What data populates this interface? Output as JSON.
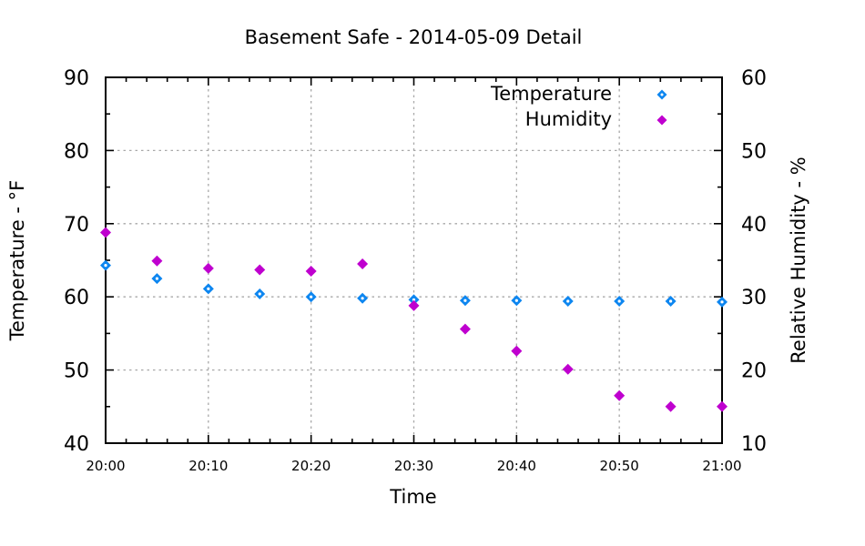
{
  "chart_data": {
    "type": "scatter",
    "title": "Basement Safe - 2014-05-09 Detail",
    "xlabel": "Time",
    "ylabel_left": "Temperature - °F",
    "ylabel_right": "Relative Humidity - %",
    "x_tick_labels": [
      "20:00",
      "20:10",
      "20:20",
      "20:30",
      "20:40",
      "20:50",
      "21:00"
    ],
    "x_tick_minutes": [
      0,
      10,
      20,
      30,
      40,
      50,
      60
    ],
    "x_minor_tick_step_minutes": 2,
    "xlim_minutes": [
      0,
      60
    ],
    "y_left_ticks": [
      40,
      50,
      60,
      70,
      80,
      90
    ],
    "y_left_lim": [
      40,
      90
    ],
    "y_right_ticks": [
      10,
      20,
      30,
      40,
      50,
      60
    ],
    "y_right_lim": [
      10,
      60
    ],
    "y_minor_tick_step": 5,
    "grid": true,
    "legend_position": "top-right-inside",
    "x_times": [
      "20:00",
      "20:05",
      "20:10",
      "20:15",
      "20:20",
      "20:25",
      "20:30",
      "20:35",
      "20:40",
      "20:45",
      "20:50",
      "20:55",
      "21:00"
    ],
    "x_minutes": [
      0,
      5,
      10,
      15,
      20,
      25,
      30,
      35,
      40,
      45,
      50,
      55,
      60
    ],
    "series": [
      {
        "name": "Temperature",
        "axis": "left",
        "unit": "°F",
        "color": "#0d86f0",
        "marker": "diamond-dot",
        "values": [
          64.3,
          62.5,
          61.1,
          60.4,
          60.0,
          59.8,
          59.6,
          59.5,
          59.5,
          59.4,
          59.4,
          59.4,
          59.3
        ]
      },
      {
        "name": "Humidity",
        "axis": "right",
        "unit": "%",
        "color": "#bf00cf",
        "marker": "diamond",
        "values": [
          38.8,
          34.9,
          33.9,
          33.7,
          33.5,
          34.5,
          28.8,
          25.6,
          22.6,
          20.1,
          16.5,
          15.0,
          15.0
        ]
      }
    ],
    "colors": {
      "grid": "#a8a8a8",
      "axis": "#000000",
      "background": "#ffffff"
    }
  }
}
